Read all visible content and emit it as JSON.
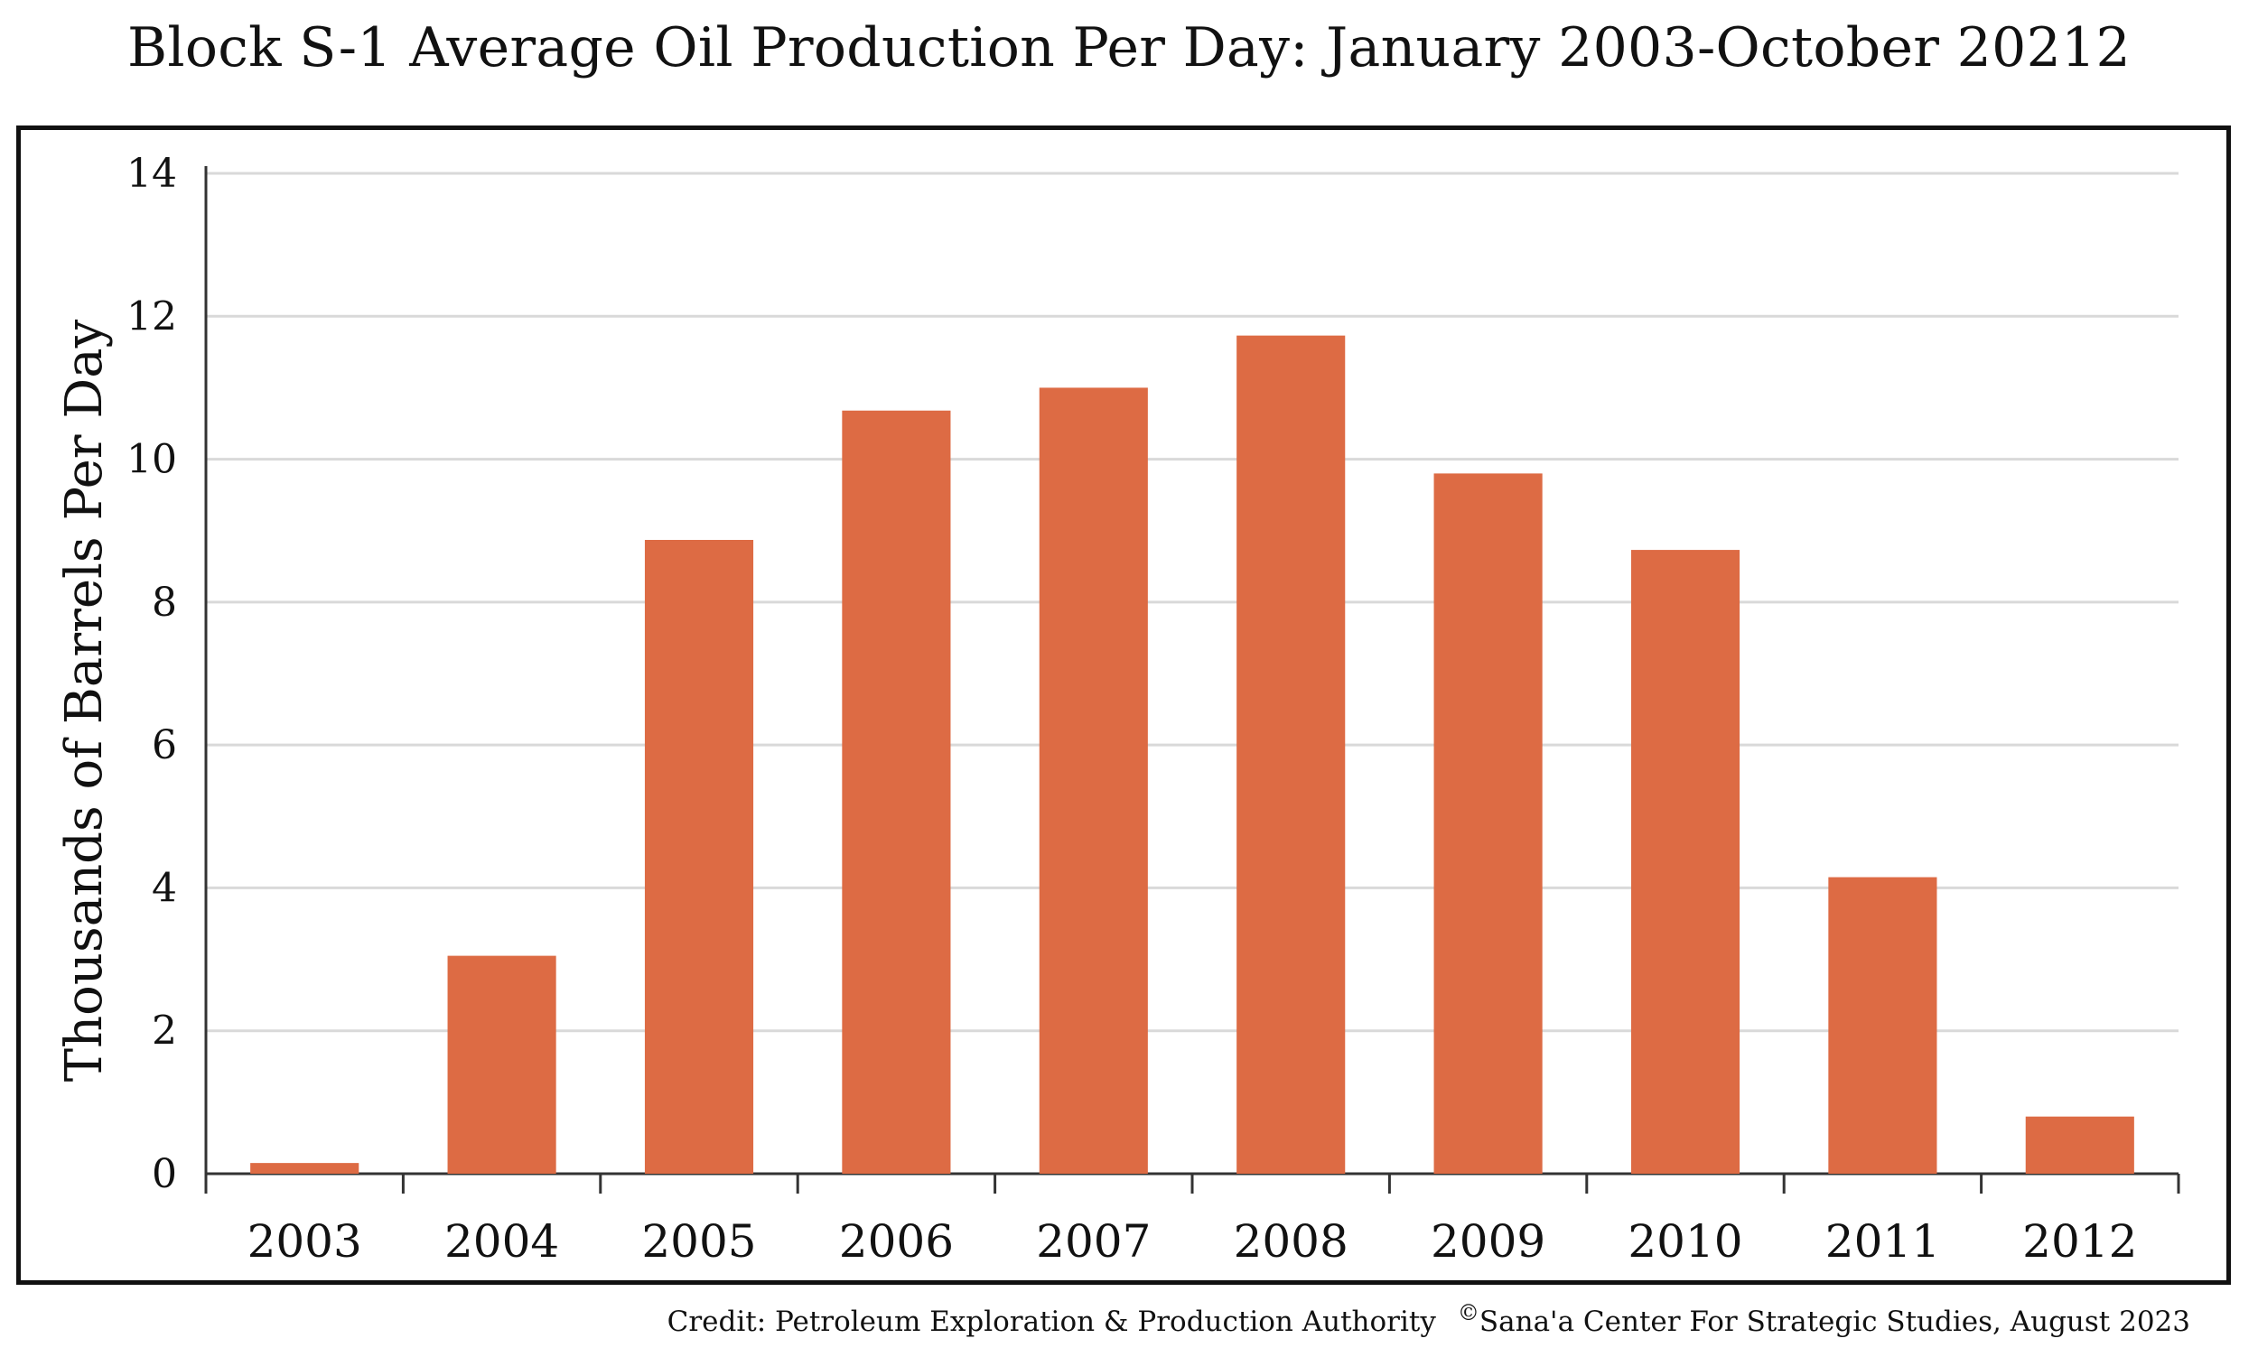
{
  "chart_data": {
    "type": "bar",
    "title": "Block S-1 Average Oil Production Per Day: January 2003-October 20212",
    "xlabel": "",
    "ylabel": "Thousands of Barrels Per Day",
    "categories": [
      "2003",
      "2004",
      "2005",
      "2006",
      "2007",
      "2008",
      "2009",
      "2010",
      "2011",
      "2012"
    ],
    "values": [
      0.15,
      3.05,
      8.87,
      10.68,
      11.0,
      11.73,
      9.8,
      8.73,
      4.15,
      0.8
    ],
    "ylim": [
      0,
      14
    ],
    "yticks": [
      0,
      2,
      4,
      6,
      8,
      10,
      12,
      14
    ],
    "grid": true,
    "bar_color": "#DD6B44",
    "grid_color": "#D9D9D9"
  },
  "credit": {
    "source": "Credit: Petroleum Exploration & Production Authority",
    "copyright_symbol": "©",
    "publisher": "Sana'a Center For Strategic Studies, August 2023"
  }
}
